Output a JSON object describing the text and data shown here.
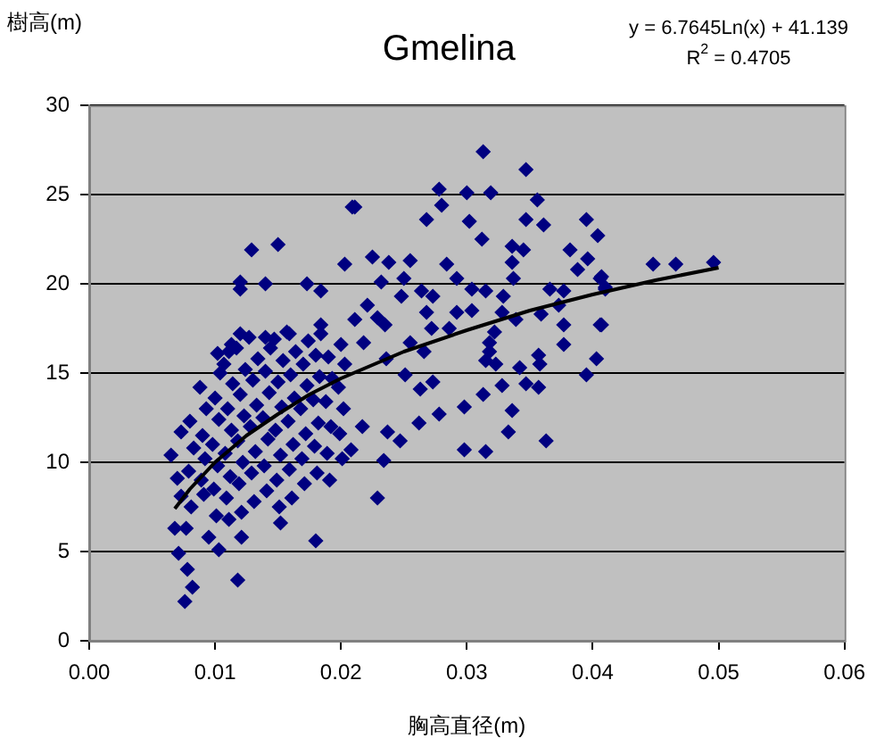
{
  "chart_data": {
    "type": "scatter",
    "title": "Gmelina",
    "xlabel": "胸高直径(m)",
    "ylabel": "樹高(m)",
    "annotations": [
      "y = 6.7645Ln(x) + 41.139",
      "R$^{2}$ = 0.4705"
    ],
    "xlim": [
      0,
      0.06
    ],
    "xticks": [
      {
        "value": 0,
        "label": "0.00"
      },
      {
        "value": 0.01,
        "label": "0.01"
      },
      {
        "value": 0.02,
        "label": "0.02"
      },
      {
        "value": 0.03,
        "label": "0.03"
      },
      {
        "value": 0.04,
        "label": "0.04"
      },
      {
        "value": 0.05,
        "label": "0.05"
      },
      {
        "value": 0.06,
        "label": "0.06"
      }
    ],
    "ylim": [
      0,
      30
    ],
    "yticks": [
      0,
      5,
      10,
      15,
      20,
      25,
      30
    ],
    "grid": "y",
    "legend": false,
    "series": [
      {
        "color": "#000080",
        "marker": "diamond",
        "x": [
          0.0209,
          0.0129,
          0.015,
          0.012,
          0.012,
          0.014,
          0.0173,
          0.0184,
          0.0203,
          0.012,
          0.0102,
          0.0113,
          0.014,
          0.0159,
          0.0184,
          0.0073,
          0.0065,
          0.007,
          0.0073,
          0.0068,
          0.0077,
          0.0071,
          0.0078,
          0.0082,
          0.0076,
          0.0118,
          0.0103,
          0.0121,
          0.0152,
          0.018,
          0.0095,
          0.0313,
          0.0347,
          0.0278,
          0.03,
          0.0319,
          0.0356,
          0.028,
          0.0211,
          0.0268,
          0.0302,
          0.0347,
          0.0361,
          0.0395,
          0.0404,
          0.0312,
          0.0336,
          0.0345,
          0.0382,
          0.0225,
          0.0238,
          0.0255,
          0.0284,
          0.0336,
          0.0396,
          0.0388,
          0.025,
          0.0292,
          0.0337,
          0.0406,
          0.0232,
          0.0304,
          0.0315,
          0.0366,
          0.0377,
          0.041,
          0.0248,
          0.0264,
          0.0273,
          0.0329,
          0.0373,
          0.0221,
          0.0268,
          0.0292,
          0.0304,
          0.0328,
          0.0359,
          0.0211,
          0.0229,
          0.0339,
          0.0377,
          0.0406,
          0.0235,
          0.0272,
          0.0286,
          0.0322,
          0.0218,
          0.0318,
          0.0377,
          0.0255,
          0.0266,
          0.0318,
          0.0357,
          0.0236,
          0.0315,
          0.0323,
          0.0358,
          0.0403,
          0.0342,
          0.0395,
          0.0251,
          0.0328,
          0.0347,
          0.0357,
          0.0273,
          0.0313,
          0.0263,
          0.0298,
          0.0336,
          0.0278,
          0.0262,
          0.0333,
          0.0363,
          0.0298,
          0.0315,
          0.0234,
          0.0229,
          0.0247,
          0.0237,
          0.0217,
          0.0208,
          0.0448,
          0.0466,
          0.0496,
          0.0407,
          0.041,
          0.0407,
          0.0081,
          0.0079,
          0.0083,
          0.008,
          0.0091,
          0.0089,
          0.0092,
          0.009,
          0.0093,
          0.0088,
          0.0101,
          0.0099,
          0.0102,
          0.0098,
          0.0103,
          0.01,
          0.0104,
          0.0111,
          0.0109,
          0.0112,
          0.0108,
          0.0113,
          0.011,
          0.0114,
          0.0107,
          0.0111,
          0.0121,
          0.0119,
          0.0122,
          0.0118,
          0.0123,
          0.012,
          0.0124,
          0.0117,
          0.0131,
          0.0129,
          0.0132,
          0.0128,
          0.0133,
          0.013,
          0.0134,
          0.0127,
          0.0141,
          0.0139,
          0.0142,
          0.0138,
          0.0143,
          0.014,
          0.0144,
          0.0151,
          0.0149,
          0.0152,
          0.0148,
          0.0153,
          0.015,
          0.0154,
          0.0147,
          0.0161,
          0.0159,
          0.0162,
          0.0158,
          0.0163,
          0.016,
          0.0164,
          0.0157,
          0.0171,
          0.0169,
          0.0172,
          0.0168,
          0.0173,
          0.017,
          0.0174,
          0.0181,
          0.0179,
          0.0182,
          0.0178,
          0.0183,
          0.018,
          0.0184,
          0.0191,
          0.0189,
          0.0192,
          0.0188,
          0.0193,
          0.019,
          0.0201,
          0.0199,
          0.0202,
          0.0198,
          0.0203,
          0.02
        ],
        "values": [
          24.3,
          21.9,
          22.2,
          20.1,
          19.7,
          20,
          20,
          19.6,
          21.1,
          17.2,
          16.1,
          16.6,
          17,
          17.2,
          17.7,
          11.7,
          10.4,
          9.1,
          8.1,
          6.3,
          6.3,
          4.9,
          4,
          3,
          2.2,
          3.4,
          5.1,
          5.8,
          6.6,
          5.6,
          5.8,
          27.4,
          26.4,
          25.3,
          25.1,
          25.1,
          24.7,
          24.4,
          24.3,
          23.6,
          23.5,
          23.6,
          23.3,
          23.6,
          22.7,
          22.5,
          22.1,
          21.9,
          21.9,
          21.5,
          21.2,
          21.3,
          21.1,
          21.2,
          21.4,
          20.8,
          20.3,
          20.3,
          20.3,
          20.3,
          20.1,
          19.7,
          19.6,
          19.7,
          19.6,
          19.8,
          19.3,
          19.6,
          19.3,
          19.3,
          18.8,
          18.8,
          18.4,
          18.4,
          18.5,
          18.4,
          18.3,
          18,
          18.1,
          18,
          17.7,
          17.7,
          17.7,
          17.5,
          17.5,
          17.3,
          16.7,
          16.7,
          16.6,
          16.7,
          16.2,
          16.2,
          16,
          15.8,
          15.7,
          15.5,
          15.5,
          15.8,
          15.3,
          14.9,
          14.9,
          14.3,
          14.4,
          14.2,
          14.5,
          13.8,
          14.1,
          13.1,
          12.9,
          12.7,
          12.2,
          11.7,
          11.2,
          10.7,
          10.6,
          10.1,
          8,
          11.2,
          11.7,
          12,
          10.7,
          21.1,
          21.1,
          21.2,
          20.4,
          19.7,
          17.7,
          7.5,
          9.5,
          10.8,
          12.3,
          8.2,
          9,
          10.2,
          11.5,
          13,
          14.2,
          7,
          8.5,
          9.8,
          11,
          12.4,
          13.6,
          15,
          6.8,
          8,
          9.2,
          10.5,
          11.8,
          13,
          14.4,
          15.5,
          16.2,
          7.2,
          8.8,
          10,
          11.2,
          12.6,
          13.8,
          15.2,
          16.4,
          7.8,
          9.4,
          10.6,
          12,
          13.2,
          14.6,
          15.8,
          17,
          8.4,
          9.8,
          11.3,
          12.5,
          13.9,
          15.1,
          16.4,
          7.5,
          9,
          10.4,
          11.8,
          13.1,
          14.5,
          15.7,
          16.9,
          8,
          9.6,
          11,
          12.3,
          13.6,
          14.9,
          16.2,
          17.3,
          8.8,
          10.2,
          11.6,
          13,
          14.3,
          15.5,
          16.8,
          9.4,
          10.9,
          12.2,
          13.5,
          14.8,
          16,
          17.2,
          9,
          10.5,
          12,
          13.4,
          14.7,
          15.9,
          10.2,
          11.6,
          13,
          14.2,
          15.5,
          16.6
        ]
      },
      {
        "type": "line",
        "color": "#000000",
        "marker": "none",
        "x": [
          0.0068,
          0.008,
          0.01,
          0.0125,
          0.015,
          0.0175,
          0.02,
          0.025,
          0.03,
          0.035,
          0.04,
          0.045,
          0.05
        ],
        "values": [
          7.4,
          8.5,
          10,
          11.5,
          12.7,
          13.8,
          14.7,
          16.2,
          17.4,
          18.5,
          19.4,
          20.2,
          20.9
        ]
      }
    ]
  }
}
